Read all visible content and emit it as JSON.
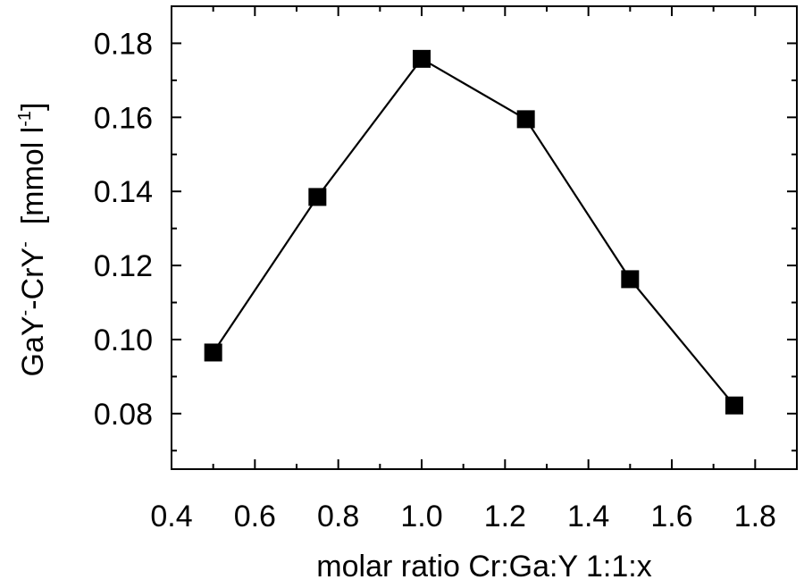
{
  "chart_data": {
    "type": "line",
    "title": "",
    "xlabel": "molar ratio Cr:Ga:Y 1:1:x",
    "ylabel_parts": {
      "ga": "GaY",
      "ga_sup": "-",
      "cr": "-CrY",
      "cr_sup": "-",
      "unit_open": "  [mmol l",
      "unit_sup": "-1",
      "unit_close": "]"
    },
    "xlim": [
      0.4,
      1.9
    ],
    "ylim": [
      0.065,
      0.19
    ],
    "x_ticks": [
      0.4,
      0.6,
      0.8,
      1.0,
      1.2,
      1.4,
      1.6,
      1.8
    ],
    "x_tick_labels": [
      "0.4",
      "0.6",
      "0.8",
      "1.0",
      "1.2",
      "1.4",
      "1.6",
      "1.8"
    ],
    "y_ticks": [
      0.08,
      0.1,
      0.12,
      0.14,
      0.16,
      0.18
    ],
    "y_tick_labels": [
      "0.08",
      "0.10",
      "0.12",
      "0.14",
      "0.16",
      "0.18"
    ],
    "x_minor_step": 0.1,
    "y_minor_step": 0.01,
    "grid": false,
    "legend": "none",
    "series": [
      {
        "marker": "square",
        "color": "#000000",
        "x": [
          0.5,
          0.75,
          1.0,
          1.25,
          1.5,
          1.75
        ],
        "y": [
          0.0965,
          0.1385,
          0.1758,
          0.1595,
          0.1163,
          0.0822
        ]
      }
    ]
  }
}
